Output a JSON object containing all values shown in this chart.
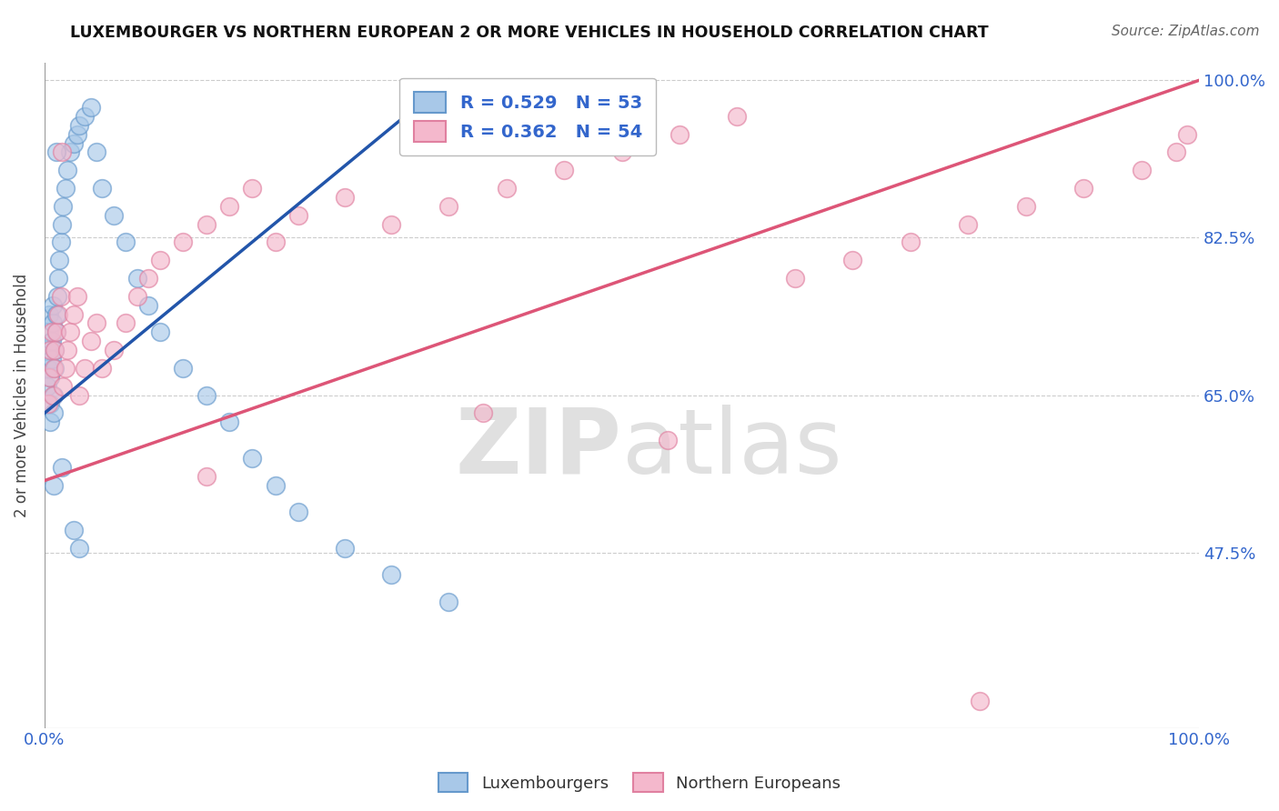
{
  "title": "LUXEMBOURGER VS NORTHERN EUROPEAN 2 OR MORE VEHICLES IN HOUSEHOLD CORRELATION CHART",
  "source": "Source: ZipAtlas.com",
  "ylabel": "2 or more Vehicles in Household",
  "xlim": [
    0.0,
    1.0
  ],
  "ylim": [
    0.28,
    1.02
  ],
  "ytick_positions": [
    0.475,
    0.65,
    0.825,
    1.0
  ],
  "yticklabels": [
    "47.5%",
    "65.0%",
    "82.5%",
    "100.0%"
  ],
  "grid_color": "#cccccc",
  "background_color": "#ffffff",
  "blue_R": 0.529,
  "blue_N": 53,
  "pink_R": 0.362,
  "pink_N": 54,
  "blue_color": "#a8c8e8",
  "pink_color": "#f4b8cc",
  "blue_edge": "#6699cc",
  "pink_edge": "#e080a0",
  "blue_line_color": "#2255aa",
  "pink_line_color": "#dd5577",
  "watermark_color": "#e0e0e0",
  "legend_label_blue": "Luxembourgers",
  "legend_label_pink": "Northern Europeans",
  "blue_scatter_x": [
    0.002,
    0.003,
    0.003,
    0.004,
    0.004,
    0.005,
    0.005,
    0.005,
    0.006,
    0.006,
    0.007,
    0.007,
    0.008,
    0.008,
    0.009,
    0.009,
    0.01,
    0.01,
    0.011,
    0.012,
    0.013,
    0.014,
    0.015,
    0.016,
    0.018,
    0.02,
    0.022,
    0.025,
    0.028,
    0.03,
    0.035,
    0.04,
    0.045,
    0.05,
    0.06,
    0.07,
    0.08,
    0.09,
    0.1,
    0.12,
    0.14,
    0.16,
    0.18,
    0.2,
    0.22,
    0.26,
    0.3,
    0.35,
    0.03,
    0.025,
    0.015,
    0.01,
    0.008
  ],
  "blue_scatter_y": [
    0.66,
    0.68,
    0.7,
    0.72,
    0.74,
    0.62,
    0.64,
    0.67,
    0.69,
    0.71,
    0.73,
    0.75,
    0.63,
    0.65,
    0.68,
    0.7,
    0.72,
    0.74,
    0.76,
    0.78,
    0.8,
    0.82,
    0.84,
    0.86,
    0.88,
    0.9,
    0.92,
    0.93,
    0.94,
    0.95,
    0.96,
    0.97,
    0.92,
    0.88,
    0.85,
    0.82,
    0.78,
    0.75,
    0.72,
    0.68,
    0.65,
    0.62,
    0.58,
    0.55,
    0.52,
    0.48,
    0.45,
    0.42,
    0.48,
    0.5,
    0.57,
    0.92,
    0.55
  ],
  "pink_scatter_x": [
    0.003,
    0.004,
    0.005,
    0.006,
    0.007,
    0.008,
    0.009,
    0.01,
    0.012,
    0.014,
    0.016,
    0.018,
    0.02,
    0.022,
    0.025,
    0.028,
    0.03,
    0.035,
    0.04,
    0.045,
    0.05,
    0.06,
    0.07,
    0.08,
    0.09,
    0.1,
    0.12,
    0.14,
    0.16,
    0.18,
    0.2,
    0.22,
    0.26,
    0.3,
    0.35,
    0.4,
    0.45,
    0.5,
    0.55,
    0.6,
    0.65,
    0.7,
    0.75,
    0.8,
    0.85,
    0.9,
    0.95,
    0.98,
    0.99,
    0.015,
    0.14,
    0.38,
    0.54,
    0.81
  ],
  "pink_scatter_y": [
    0.64,
    0.67,
    0.7,
    0.72,
    0.65,
    0.68,
    0.7,
    0.72,
    0.74,
    0.76,
    0.66,
    0.68,
    0.7,
    0.72,
    0.74,
    0.76,
    0.65,
    0.68,
    0.71,
    0.73,
    0.68,
    0.7,
    0.73,
    0.76,
    0.78,
    0.8,
    0.82,
    0.84,
    0.86,
    0.88,
    0.82,
    0.85,
    0.87,
    0.84,
    0.86,
    0.88,
    0.9,
    0.92,
    0.94,
    0.96,
    0.78,
    0.8,
    0.82,
    0.84,
    0.86,
    0.88,
    0.9,
    0.92,
    0.94,
    0.92,
    0.56,
    0.63,
    0.6,
    0.31
  ],
  "blue_line_x0": 0.0,
  "blue_line_y0": 0.63,
  "blue_line_x1": 0.35,
  "blue_line_y1": 1.0,
  "blue_line_dash_x0": 0.35,
  "blue_line_dash_y0": 1.0,
  "blue_line_dash_x1": 0.5,
  "blue_line_dash_y1": 1.0,
  "pink_line_x0": 0.0,
  "pink_line_y0": 0.555,
  "pink_line_x1": 1.0,
  "pink_line_y1": 1.0
}
